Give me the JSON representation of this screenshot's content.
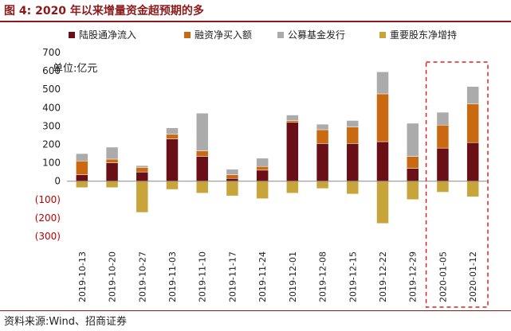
{
  "header": {
    "title": "图 4:  2020 年以来增量资金超预期的多"
  },
  "footer": {
    "source": "资料来源:Wind、招商证券"
  },
  "colors": {
    "northbound": "#6B0F16",
    "margin": "#C96A12",
    "funds": "#ABABAB",
    "shareholders": "#C8A53A",
    "negative_tick": "#C00000",
    "highlight": "#E0201B",
    "brand": "#8B1A1A"
  },
  "chart_data": {
    "type": "bar",
    "stacked": true,
    "unit_label": "单位:亿元",
    "categories": [
      "2019-10-13",
      "2019-10-20",
      "2019-10-27",
      "2019-11-03",
      "2019-11-10",
      "2019-11-17",
      "2019-11-24",
      "2019-12-01",
      "2019-12-08",
      "2019-12-15",
      "2019-12-22",
      "2019-12-29",
      "2020-01-05",
      "2020-01-12"
    ],
    "series": [
      {
        "name": "陆股通净流入",
        "color_key": "northbound",
        "values": [
          35,
          100,
          50,
          230,
          135,
          15,
          60,
          320,
          205,
          205,
          215,
          70,
          180,
          210
        ]
      },
      {
        "name": "融资净买入额",
        "color_key": "margin",
        "values": [
          75,
          20,
          25,
          25,
          30,
          20,
          20,
          10,
          75,
          90,
          260,
          65,
          125,
          210
        ]
      },
      {
        "name": "公募基金发行",
        "color_key": "funds",
        "values": [
          40,
          65,
          10,
          35,
          205,
          30,
          45,
          30,
          30,
          35,
          120,
          180,
          70,
          95
        ]
      },
      {
        "name": "重要股东净增持",
        "color_key": "shareholders",
        "values": [
          -35,
          -35,
          -170,
          -45,
          -65,
          -80,
          -95,
          -65,
          -40,
          -70,
          -230,
          -100,
          -60,
          -85
        ]
      }
    ],
    "ylim": [
      -300,
      700
    ],
    "yticks": [
      -300,
      -200,
      -100,
      0,
      100,
      200,
      300,
      400,
      500,
      600,
      700
    ],
    "ytick_labels": [
      "(300)",
      "(200)",
      "(100)",
      "0",
      "100",
      "200",
      "300",
      "400",
      "500",
      "600",
      "700"
    ],
    "grid": false,
    "legend_position": "top",
    "highlight_categories": [
      "2020-01-05",
      "2020-01-12"
    ],
    "xlabel": "",
    "ylabel": ""
  }
}
